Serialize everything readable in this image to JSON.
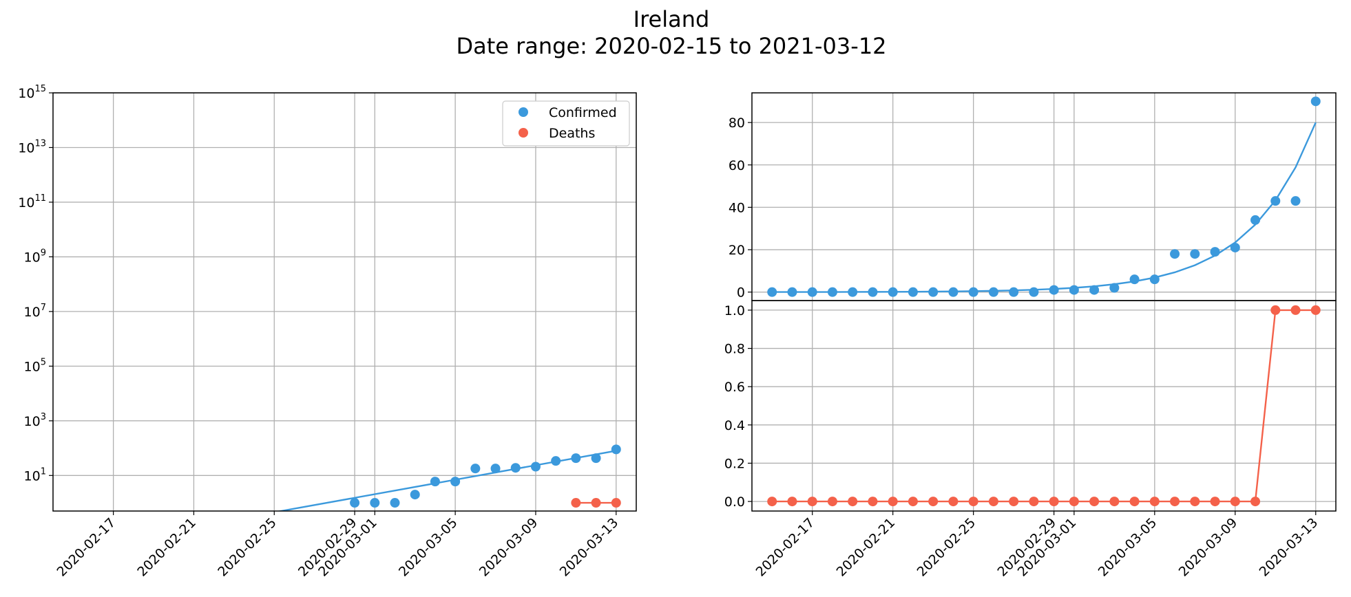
{
  "figure": {
    "title": "Ireland",
    "subtitle": "Date range: 2020-02-15 to 2021-03-12"
  },
  "colors": {
    "confirmed": "#3b99dc",
    "deaths": "#f4614a",
    "grid": "#b0b0b0"
  },
  "legend": {
    "placement": "upper-right",
    "confirmed": "Confirmed",
    "deaths": "Deaths"
  },
  "chart_data": [
    {
      "type": "scatter",
      "panel": "left",
      "yscale": "log",
      "grid": true,
      "xlim": [
        "2020-02-14",
        "2020-03-14"
      ],
      "ylim": [
        0.5,
        1000000000000000.0
      ],
      "x_ticks": [
        "2020-02-17",
        "2020-02-21",
        "2020-02-25",
        "2020-02-29",
        "2020-03-01",
        "2020-03-05",
        "2020-03-09",
        "2020-03-13"
      ],
      "y_ticks": [
        {
          "base": "10",
          "exp": "1",
          "value": 10
        },
        {
          "base": "10",
          "exp": "3",
          "value": 1000
        },
        {
          "base": "10",
          "exp": "5",
          "value": 100000
        },
        {
          "base": "10",
          "exp": "7",
          "value": 10000000
        },
        {
          "base": "10",
          "exp": "9",
          "value": 1000000000
        },
        {
          "base": "10",
          "exp": "11",
          "value": 100000000000
        },
        {
          "base": "10",
          "exp": "13",
          "value": 10000000000000
        },
        {
          "base": "10",
          "exp": "15",
          "value": 1000000000000000
        }
      ],
      "series": [
        {
          "name": "Confirmed",
          "marker": "circle",
          "x": [
            "2020-02-29",
            "2020-03-01",
            "2020-03-02",
            "2020-03-03",
            "2020-03-04",
            "2020-03-05",
            "2020-03-06",
            "2020-03-07",
            "2020-03-08",
            "2020-03-09",
            "2020-03-10",
            "2020-03-11",
            "2020-03-12",
            "2020-03-13"
          ],
          "y": [
            1,
            1,
            1,
            2,
            6,
            6,
            18,
            18,
            19,
            21,
            34,
            43,
            43,
            90
          ],
          "fit": {
            "type": "exponential",
            "x": [
              "2020-02-25",
              "2020-03-13"
            ],
            "y": [
              0.45,
              80
            ]
          }
        },
        {
          "name": "Deaths",
          "marker": "circle",
          "line": true,
          "x": [
            "2020-03-11",
            "2020-03-12",
            "2020-03-13"
          ],
          "y": [
            1,
            1,
            1
          ]
        }
      ]
    },
    {
      "type": "line",
      "panel": "right-top",
      "grid": true,
      "xlim": [
        "2020-02-14",
        "2020-03-14"
      ],
      "ylim": [
        -4,
        94
      ],
      "y_ticks": [
        "0",
        "20",
        "40",
        "60",
        "80"
      ],
      "series": [
        {
          "name": "Confirmed",
          "marker": "circle",
          "x": [
            "2020-02-15",
            "2020-02-16",
            "2020-02-17",
            "2020-02-18",
            "2020-02-19",
            "2020-02-20",
            "2020-02-21",
            "2020-02-22",
            "2020-02-23",
            "2020-02-24",
            "2020-02-25",
            "2020-02-26",
            "2020-02-27",
            "2020-02-28",
            "2020-02-29",
            "2020-03-01",
            "2020-03-02",
            "2020-03-03",
            "2020-03-04",
            "2020-03-05",
            "2020-03-06",
            "2020-03-07",
            "2020-03-08",
            "2020-03-09",
            "2020-03-10",
            "2020-03-11",
            "2020-03-12",
            "2020-03-13"
          ],
          "y": [
            0,
            0,
            0,
            0,
            0,
            0,
            0,
            0,
            0,
            0,
            0,
            0,
            0,
            0,
            1,
            1,
            1,
            2,
            6,
            6,
            18,
            18,
            19,
            21,
            34,
            43,
            43,
            90
          ],
          "fit": {
            "type": "exponential",
            "x": [
              "2020-02-15",
              "2020-03-13"
            ],
            "y": [
              0.02,
              80
            ]
          }
        }
      ]
    },
    {
      "type": "line",
      "panel": "right-bottom",
      "grid": true,
      "xlim": [
        "2020-02-14",
        "2020-03-14"
      ],
      "ylim": [
        -0.05,
        1.05
      ],
      "x_ticks": [
        "2020-02-17",
        "2020-02-21",
        "2020-02-25",
        "2020-02-29",
        "2020-03-01",
        "2020-03-05",
        "2020-03-09",
        "2020-03-13"
      ],
      "y_ticks": [
        "0.0",
        "0.2",
        "0.4",
        "0.6",
        "0.8",
        "1.0"
      ],
      "series": [
        {
          "name": "Deaths",
          "marker": "circle",
          "line": true,
          "x": [
            "2020-02-15",
            "2020-02-16",
            "2020-02-17",
            "2020-02-18",
            "2020-02-19",
            "2020-02-20",
            "2020-02-21",
            "2020-02-22",
            "2020-02-23",
            "2020-02-24",
            "2020-02-25",
            "2020-02-26",
            "2020-02-27",
            "2020-02-28",
            "2020-02-29",
            "2020-03-01",
            "2020-03-02",
            "2020-03-03",
            "2020-03-04",
            "2020-03-05",
            "2020-03-06",
            "2020-03-07",
            "2020-03-08",
            "2020-03-09",
            "2020-03-10",
            "2020-03-11",
            "2020-03-12",
            "2020-03-13"
          ],
          "y": [
            0,
            0,
            0,
            0,
            0,
            0,
            0,
            0,
            0,
            0,
            0,
            0,
            0,
            0,
            0,
            0,
            0,
            0,
            0,
            0,
            0,
            0,
            0,
            0,
            0,
            1,
            1,
            1
          ]
        }
      ]
    }
  ]
}
